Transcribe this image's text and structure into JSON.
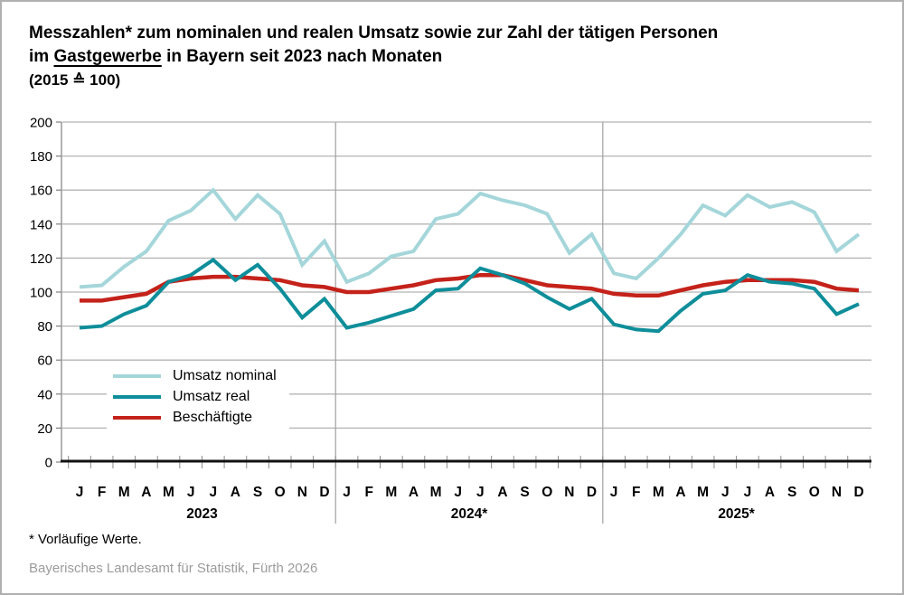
{
  "title": {
    "line1": "Messzahlen* zum nominalen und realen Umsatz sowie zur Zahl der tätigen Personen",
    "line2_pre": "im",
    "line2_underline": "Gastgewerbe",
    "line2_post": "in Bayern seit 2023 nach Monaten",
    "line3": "(2015 ≙ 100)"
  },
  "footnote": "* Vorläufige Werte.",
  "source": "Bayerisches Landesamt für Statistik, Fürth 2026",
  "chart_data": {
    "type": "line",
    "x_unit": "month",
    "years": [
      "2023",
      "2024*",
      "2025*"
    ],
    "month_labels": [
      "J",
      "F",
      "M",
      "A",
      "M",
      "J",
      "J",
      "A",
      "S",
      "O",
      "N",
      "D"
    ],
    "ylim": [
      0,
      200
    ],
    "yticks": [
      0,
      20,
      40,
      60,
      80,
      100,
      120,
      140,
      160,
      180,
      200
    ],
    "grid": true,
    "legend_position": "inside bottom-left",
    "axis_colors": {
      "grid": "#b4b4b4",
      "spine": "#7f7f7f",
      "axis": "#111111",
      "divider": "#a0a0a0",
      "tick": "#8c8c8c"
    },
    "series": [
      {
        "name": "Umsatz nominal",
        "color": "#a4d6da",
        "stroke_width": 4,
        "values": [
          103,
          104,
          115,
          124,
          142,
          148,
          160,
          143,
          157,
          146,
          116,
          130,
          106,
          111,
          121,
          124,
          143,
          146,
          158,
          154,
          151,
          146,
          123,
          134,
          111,
          108,
          120,
          134,
          151,
          145,
          157,
          150,
          153,
          147,
          124,
          134
        ]
      },
      {
        "name": "Umsatz real",
        "color": "#0e8e9a",
        "stroke_width": 4,
        "values": [
          79,
          80,
          87,
          92,
          106,
          110,
          119,
          107,
          116,
          102,
          85,
          96,
          79,
          82,
          86,
          90,
          101,
          102,
          114,
          110,
          105,
          97,
          90,
          96,
          81,
          78,
          77,
          89,
          99,
          101,
          110,
          106,
          105,
          102,
          87,
          93
        ]
      },
      {
        "name": "Beschäftigte",
        "color": "#c4221a",
        "stroke_width": 4.5,
        "values": [
          95,
          95,
          97,
          99,
          106,
          108,
          109,
          109,
          108,
          107,
          104,
          103,
          100,
          100,
          102,
          104,
          107,
          108,
          110,
          110,
          107,
          104,
          103,
          102,
          99,
          98,
          98,
          101,
          104,
          106,
          107,
          107,
          107,
          106,
          102,
          101
        ]
      }
    ]
  }
}
